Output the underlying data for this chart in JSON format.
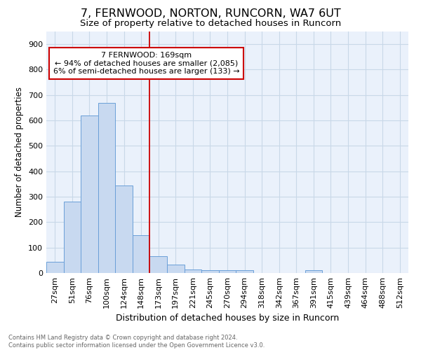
{
  "title1": "7, FERNWOOD, NORTON, RUNCORN, WA7 6UT",
  "title2": "Size of property relative to detached houses in Runcorn",
  "xlabel": "Distribution of detached houses by size in Runcorn",
  "ylabel": "Number of detached properties",
  "categories": [
    "27sqm",
    "51sqm",
    "76sqm",
    "100sqm",
    "124sqm",
    "148sqm",
    "173sqm",
    "197sqm",
    "221sqm",
    "245sqm",
    "270sqm",
    "294sqm",
    "318sqm",
    "342sqm",
    "367sqm",
    "391sqm",
    "415sqm",
    "439sqm",
    "464sqm",
    "488sqm",
    "512sqm"
  ],
  "values": [
    45,
    280,
    620,
    670,
    345,
    148,
    65,
    33,
    15,
    12,
    10,
    10,
    0,
    0,
    0,
    10,
    0,
    0,
    0,
    0,
    0
  ],
  "bar_color": "#c8d9f0",
  "bar_edge_color": "#6a9fd8",
  "vline_index": 6,
  "vline_color": "#cc0000",
  "annotation_line1": "7 FERNWOOD: 169sqm",
  "annotation_line2": "← 94% of detached houses are smaller (2,085)",
  "annotation_line3": "6% of semi-detached houses are larger (133) →",
  "annotation_box_color": "#cc0000",
  "ylim": [
    0,
    950
  ],
  "yticks": [
    0,
    100,
    200,
    300,
    400,
    500,
    600,
    700,
    800,
    900
  ],
  "grid_color": "#c8d8e8",
  "bg_color": "#eaf1fb",
  "footnote": "Contains HM Land Registry data © Crown copyright and database right 2024.\nContains public sector information licensed under the Open Government Licence v3.0.",
  "title1_fontsize": 11.5,
  "title2_fontsize": 9.5,
  "xlabel_fontsize": 9,
  "ylabel_fontsize": 8.5,
  "tick_fontsize": 8,
  "annot_fontsize": 8,
  "footnote_fontsize": 6
}
